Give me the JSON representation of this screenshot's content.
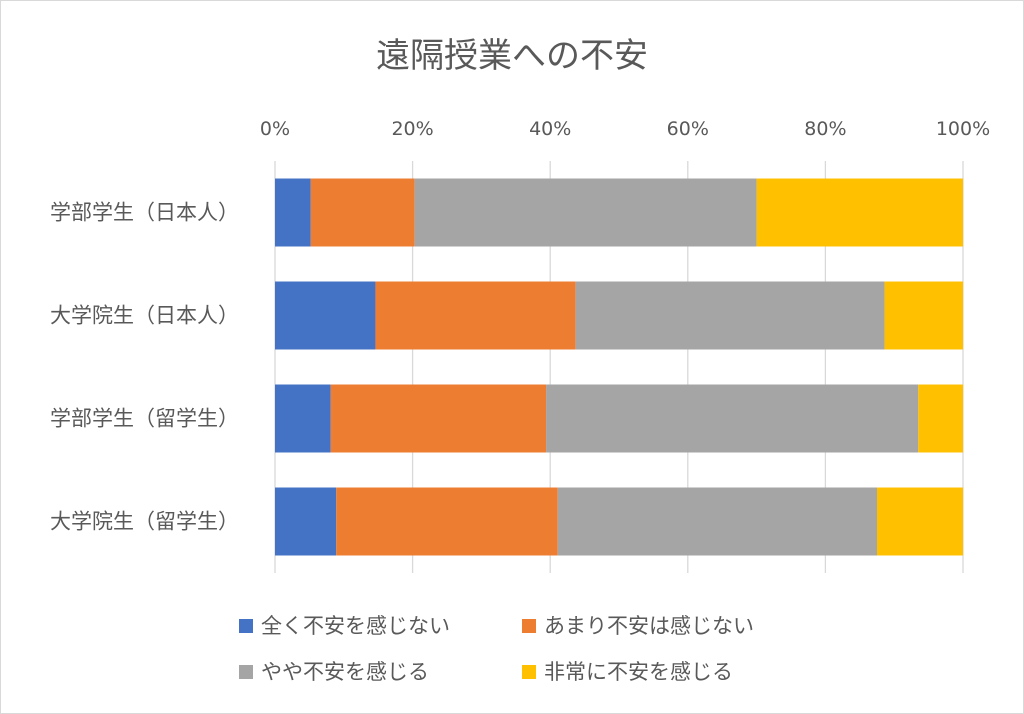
{
  "chart_data": {
    "type": "bar",
    "orientation": "horizontal",
    "stacked": "percent",
    "title": "遠隔授業への不安",
    "categories": [
      "学部学生（日本人）",
      "大学院生（日本人）",
      "学部学生（留学生）",
      "大学院生（留学生）"
    ],
    "series": [
      {
        "name": "全く不安を感じない",
        "color": "#4472C4",
        "values": [
          5.2,
          14.6,
          8.1,
          8.9
        ]
      },
      {
        "name": "あまり不安は感じない",
        "color": "#ED7D31",
        "values": [
          15.1,
          29.1,
          31.3,
          32.2
        ]
      },
      {
        "name": "やや不安を感じる",
        "color": "#A5A5A5",
        "values": [
          49.7,
          44.9,
          54.1,
          46.4
        ]
      },
      {
        "name": "非常に不安を感じる",
        "color": "#FFC000",
        "values": [
          30.0,
          11.4,
          6.5,
          12.5
        ]
      }
    ],
    "xlim": [
      0,
      100
    ],
    "xticks": [
      "0%",
      "20%",
      "40%",
      "60%",
      "80%",
      "100%"
    ],
    "grid": true,
    "legend_position": "bottom"
  }
}
